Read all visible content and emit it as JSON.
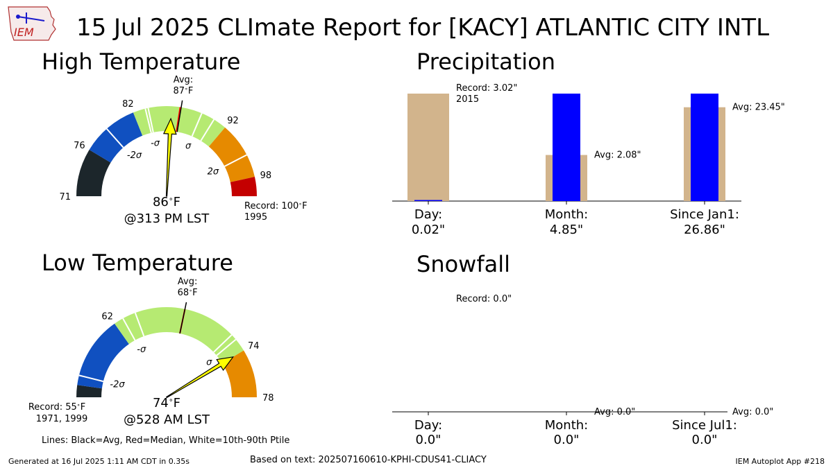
{
  "title": "15 Jul 2025 CLImate Report for [KACY] ATLANTIC CITY INTL",
  "logo": {
    "text": "IEM"
  },
  "high": {
    "title": "High Temperature",
    "avg_label": "Avg:",
    "avg_value": "87",
    "value_text": "86",
    "unit": "F",
    "time_text": "@313 PM LST",
    "record_label": "Record: 100",
    "record_unit": "F",
    "record_year": "1995",
    "min": 71,
    "max": 100,
    "observed": 86,
    "avg": 87,
    "median": 86.9,
    "p10": 83.6,
    "p90": 90.6,
    "ticks": [
      {
        "value": 71,
        "label": "71"
      },
      {
        "value": 76,
        "label": "76"
      },
      {
        "value": 82,
        "label": "82"
      },
      {
        "value": 92,
        "label": "92"
      },
      {
        "value": 98,
        "label": "98"
      }
    ],
    "sigma_labels": [
      {
        "value": 78.8,
        "label": "-2σ"
      },
      {
        "value": 83.3,
        "label": "-σ"
      },
      {
        "value": 89.2,
        "label": "σ"
      },
      {
        "value": 95.6,
        "label": "2σ"
      }
    ],
    "bands": [
      {
        "from": 71,
        "to": 76,
        "color": "#1c262b"
      },
      {
        "from": 76,
        "to": 82,
        "color": "#1050c0"
      },
      {
        "from": 82,
        "to": 92,
        "color": "#b6ea72"
      },
      {
        "from": 92,
        "to": 98,
        "color": "#e68a00"
      },
      {
        "from": 98,
        "to": 100,
        "color": "#c40000"
      }
    ]
  },
  "low": {
    "title": "Low Temperature",
    "avg_label": "Avg:",
    "avg_value": "68",
    "value_text": "74",
    "unit": "F",
    "time_text": "@528 AM LST",
    "record_label": "Record: 55",
    "record_unit": "F",
    "record_year": "1971, 1999",
    "min": 55,
    "max": 78,
    "observed": 74,
    "avg": 68,
    "median": 68.0,
    "p10": 63.9,
    "p90": 72.4,
    "ticks": [
      {
        "value": 62,
        "label": "62"
      },
      {
        "value": 74,
        "label": "74"
      },
      {
        "value": 78,
        "label": "78"
      }
    ],
    "sigma_labels": [
      {
        "value": 56.8,
        "label": "-2σ"
      },
      {
        "value": 62.8,
        "label": "-σ"
      },
      {
        "value": 72.9,
        "label": "σ"
      }
    ],
    "bands": [
      {
        "from": 55,
        "to": 56,
        "color": "#1c262b"
      },
      {
        "from": 56,
        "to": 62,
        "color": "#1050c0"
      },
      {
        "from": 62,
        "to": 74,
        "color": "#b6ea72"
      },
      {
        "from": 74,
        "to": 78,
        "color": "#e68a00"
      }
    ]
  },
  "precip": {
    "title": "Precipitation",
    "ymax": 3.02,
    "groups": [
      {
        "xlabel": "Day:",
        "value_text": "0.02\"",
        "value": 0.02,
        "avg": 0.0,
        "record": 3.02,
        "ann": [
          "Record: 3.02\"",
          "2015"
        ]
      },
      {
        "xlabel": "Month:",
        "value_text": "4.85\"",
        "value": 4.85,
        "avg": 2.08,
        "record": null,
        "ann": [
          "Avg: 2.08\""
        ]
      },
      {
        "xlabel": "Since Jan1:",
        "value_text": "26.86\"",
        "value": 26.86,
        "avg": 23.45,
        "record": null,
        "ann": [
          "Avg: 23.45\""
        ]
      }
    ]
  },
  "snow": {
    "title": "Snowfall",
    "groups": [
      {
        "xlabel": "Day:",
        "value_text": "0.0\"",
        "value": 0.0,
        "ann": [
          "Record: 0.0\""
        ]
      },
      {
        "xlabel": "Month:",
        "value_text": "0.0\"",
        "value": 0.0,
        "ann": [
          "Avg: 0.0\""
        ]
      },
      {
        "xlabel": "Since Jul1:",
        "value_text": "0.0\"",
        "value": 0.0,
        "ann": [
          "Avg: 0.0\""
        ]
      }
    ]
  },
  "colors": {
    "observed": "#0000ff",
    "climate": "#d2b48c",
    "needle": "#ffff00",
    "avg_line": "#000000",
    "median_line": "#ff0000"
  },
  "legend_note": "Lines: Black=Avg, Red=Median, White=10th-90th Ptile",
  "footer": {
    "generated": "Generated at 16 Jul 2025 1:11 AM CDT in 0.35s",
    "source": "Based on text: 202507160610-KPHI-CDUS41-CLIACY",
    "app": "IEM Autoplot App #218"
  }
}
